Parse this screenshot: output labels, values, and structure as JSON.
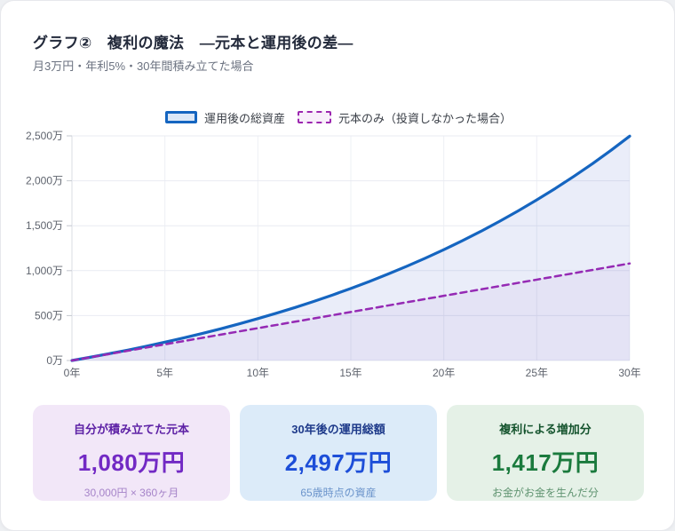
{
  "page": {
    "title": "グラフ②　複利の魔法　―元本と運用後の差―",
    "subtitle": "月3万円・年利5%・30年間積み立てた場合"
  },
  "legend": {
    "series1_label": "運用後の総資産",
    "series2_label": "元本のみ（投資しなかった場合）"
  },
  "chart_data": {
    "type": "line",
    "x": [
      0,
      1,
      2,
      3,
      4,
      5,
      6,
      7,
      8,
      9,
      10,
      11,
      12,
      13,
      14,
      15,
      16,
      17,
      18,
      19,
      20,
      21,
      22,
      23,
      24,
      25,
      26,
      27,
      28,
      29,
      30
    ],
    "series": [
      {
        "name": "運用後の総資産",
        "style": "solid",
        "color": "#1565c0",
        "fill": "rgba(49,78,192,0.10)",
        "line_width": 3.2,
        "values": [
          0,
          37,
          76,
          116,
          159,
          204,
          251,
          301,
          353,
          408,
          466,
          527,
          590,
          657,
          728,
          802,
          880,
          962,
          1048,
          1138,
          1233,
          1333,
          1438,
          1549,
          1665,
          1787,
          1915,
          2050,
          2191,
          2340,
          2497
        ]
      },
      {
        "name": "元本のみ（投資しなかった場合）",
        "style": "dashed",
        "color": "#952ab4",
        "fill": "rgba(130,60,190,0.06)",
        "line_width": 2.5,
        "values": [
          0,
          36,
          72,
          108,
          144,
          180,
          216,
          252,
          288,
          324,
          360,
          396,
          432,
          468,
          504,
          540,
          576,
          612,
          648,
          684,
          720,
          756,
          792,
          828,
          864,
          900,
          936,
          972,
          1008,
          1044,
          1080
        ]
      }
    ],
    "xlim": [
      0,
      30
    ],
    "ylim": [
      0,
      2500
    ],
    "x_ticks": [
      0,
      5,
      10,
      15,
      20,
      25,
      30
    ],
    "y_ticks": [
      0,
      500,
      1000,
      1500,
      2000,
      2500
    ],
    "x_tick_suffix": "年",
    "y_tick_suffix": "万",
    "grid": true,
    "legend_position": "top-center",
    "colors": {
      "grid_h": "#e9ebf2",
      "grid_v": "#eef0f5",
      "axis": "#d9dce3",
      "tick": "#c4c8d0",
      "tick_label": "#5f646e"
    }
  },
  "cards": [
    {
      "title": "自分が積み立てた元本",
      "value": "1,080万円",
      "note": "30,000円 × 360ヶ月"
    },
    {
      "title": "30年後の運用総額",
      "value": "2,497万円",
      "note": "65歳時点の資産"
    },
    {
      "title": "複利による増加分",
      "value": "1,417万円",
      "note": "お金がお金を生んだ分"
    }
  ]
}
